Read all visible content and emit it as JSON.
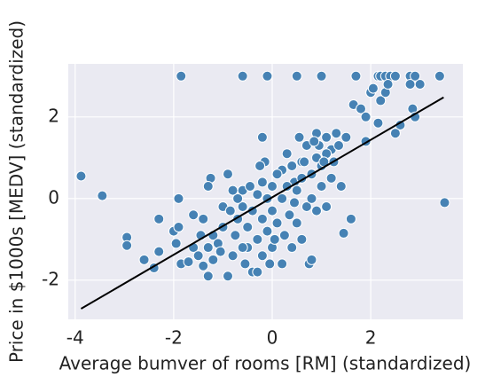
{
  "chart_data": {
    "type": "scatter",
    "xlabel": "Average bumver of rooms [RM] (standardized)",
    "ylabel": "Price in $1000s [MEDV] (standardized)",
    "xlim": [
      -4.14,
      3.87
    ],
    "ylim": [
      -2.96,
      3.3
    ],
    "xticks": [
      -4,
      -2,
      0,
      2
    ],
    "yticks": [
      -2,
      0,
      2
    ],
    "grid": true,
    "points": {
      "color": "#4682b4",
      "x": [
        -3.88,
        -3.45,
        -2.95,
        -2.95,
        -2.6,
        -2.4,
        -2.3,
        -2.3,
        -1.85,
        -0.6,
        -0.1,
        0.5,
        1.0,
        1.7,
        2.15,
        2.2,
        2.3,
        2.4,
        2.5,
        2.8,
        2.9,
        3.4,
        3.5,
        1.6,
        1.45,
        0.75,
        0.8,
        -0.2,
        1.65,
        1.8,
        1.9,
        2.0,
        2.05,
        2.15,
        2.2,
        2.3,
        2.35,
        2.6,
        2.5,
        2.8,
        2.85,
        2.9,
        3.0,
        1.9,
        1.5,
        1.2,
        1.3,
        1.1,
        0.95,
        0.9,
        1.0,
        1.2,
        1.4,
        1.1,
        0.6,
        0.45,
        0.2,
        -2.0,
        -1.9,
        -1.95,
        -1.85,
        -1.7,
        -1.6,
        -1.5,
        -1.4,
        -1.3,
        -1.2,
        -1.4,
        -1.9,
        -1.6,
        -1.3,
        -1.2,
        -1.1,
        -1.0,
        -1.0,
        -1.25,
        -1.3,
        -0.9,
        -0.8,
        -0.75,
        -0.7,
        -0.6,
        -0.6,
        -0.5,
        -0.5,
        -0.4,
        -0.4,
        -0.3,
        -0.3,
        -0.2,
        -0.2,
        -0.2,
        -0.1,
        -0.1,
        0.0,
        0.0,
        0.0,
        0.1,
        0.1,
        0.2,
        0.2,
        0.25,
        0.3,
        0.35,
        0.4,
        0.4,
        0.5,
        0.5,
        0.6,
        0.6,
        0.7,
        0.7,
        0.8,
        0.8,
        0.9,
        0.9,
        1.0,
        1.1,
        -0.7,
        -0.9,
        -0.85,
        -1.45,
        -0.55,
        -0.05,
        -0.15,
        0.3,
        0.55,
        -0.25,
        -0.6,
        -1.05,
        -0.3,
        0.05,
        0.45,
        0.85,
        1.05,
        1.25,
        1.35,
        0.65,
        -0.45,
        -0.8
      ],
      "values": [
        0.55,
        0.07,
        -0.95,
        -1.15,
        -1.5,
        -1.7,
        -1.3,
        -0.5,
        3.0,
        3.0,
        3.0,
        3.0,
        3.0,
        3.0,
        3.0,
        3.0,
        3.0,
        3.0,
        3.0,
        3.0,
        3.0,
        3.0,
        -0.1,
        -0.5,
        -0.85,
        -1.6,
        -1.5,
        1.5,
        2.3,
        2.2,
        2.0,
        2.6,
        2.7,
        1.85,
        2.4,
        2.6,
        2.8,
        1.8,
        1.6,
        2.8,
        2.2,
        2.0,
        2.8,
        1.4,
        1.5,
        1.2,
        1.6,
        1.5,
        1.3,
        1.0,
        0.8,
        0.5,
        0.3,
        -0.2,
        0.9,
        0.4,
        0.7,
        -0.8,
        -0.7,
        -1.1,
        -1.6,
        -1.55,
        -1.2,
        -1.4,
        -1.65,
        -1.2,
        -0.9,
        -0.5,
        0.0,
        -0.4,
        -1.9,
        -1.5,
        -1.1,
        -0.7,
        -0.2,
        0.5,
        0.3,
        -1.9,
        -1.4,
        -0.9,
        -0.5,
        -0.2,
        0.2,
        -1.2,
        -0.7,
        -1.8,
        -0.3,
        0.1,
        -1.0,
        -1.4,
        -0.5,
        0.4,
        0.0,
        -0.8,
        -1.2,
        0.3,
        -0.3,
        -0.6,
        0.6,
        -1.6,
        0.0,
        -0.9,
        0.3,
        -0.4,
        0.8,
        -1.2,
        -0.6,
        0.2,
        -1.0,
        0.5,
        -0.2,
        1.3,
        0.0,
        0.6,
        -0.3,
        1.6,
        0.3,
        1.1,
        0.0,
        0.6,
        -0.3,
        -0.9,
        -1.6,
        -1.6,
        0.9,
        1.1,
        1.5,
        0.8,
        -1.2,
        -1.3,
        -1.8,
        -1.0,
        -0.1,
        1.4,
        0.9,
        0.9,
        1.3,
        0.9,
        0.3,
        0.2
      ]
    },
    "fit": {
      "color": "#000000",
      "x": [
        -3.88,
        3.48
      ],
      "values": [
        -2.7,
        2.48
      ]
    }
  }
}
